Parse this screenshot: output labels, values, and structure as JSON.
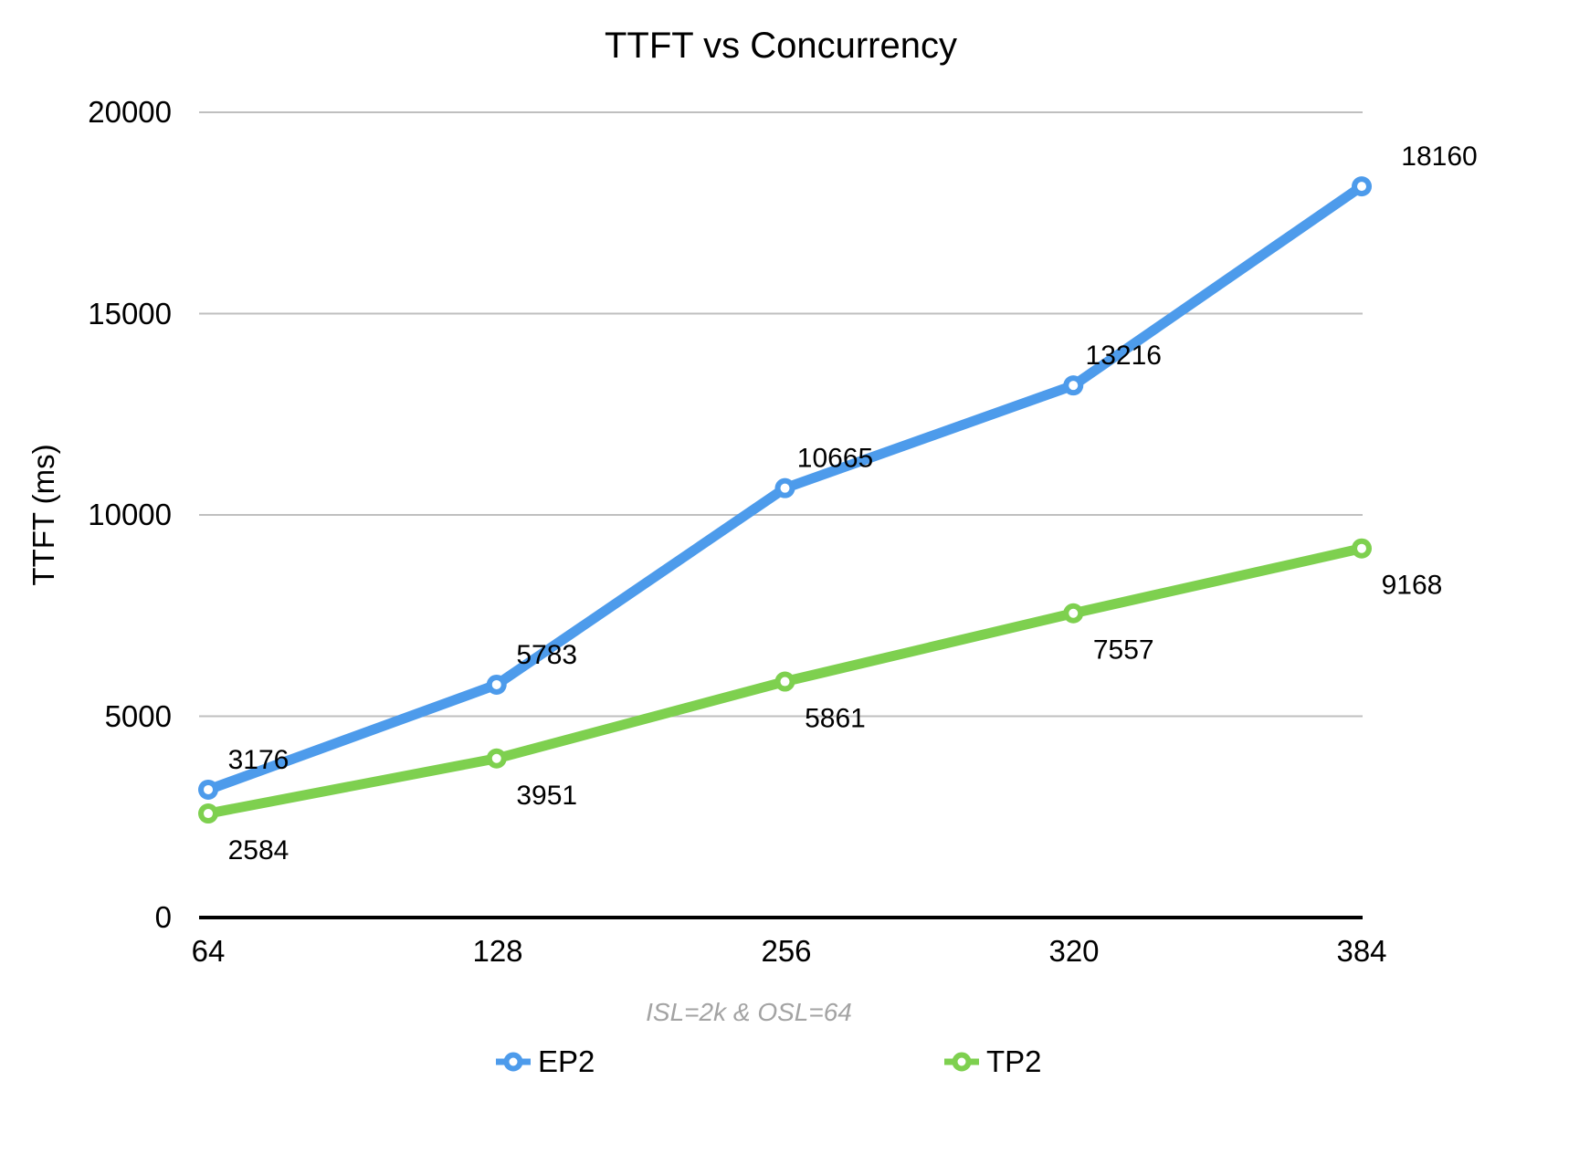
{
  "chart_data": {
    "type": "line",
    "title": "TTFT vs Concurrency",
    "ylabel": "TTFT (ms)",
    "xlabel": "ISL=2k & OSL=64",
    "categories": [
      "64",
      "128",
      "256",
      "320",
      "384"
    ],
    "series": [
      {
        "name": "EP2",
        "color": "#4D9BEB",
        "values": [
          3176,
          5783,
          10665,
          13216,
          18160
        ]
      },
      {
        "name": "TP2",
        "color": "#7ED04F",
        "values": [
          2584,
          3951,
          5861,
          7557,
          9168
        ]
      }
    ],
    "ylim": [
      0,
      20000
    ],
    "y_ticks": [
      0,
      5000,
      10000,
      15000,
      20000
    ],
    "y_tick_labels": [
      "0",
      "5000",
      "10000",
      "15000",
      "20000"
    ],
    "grid": "on",
    "legend_position": "bottom",
    "data_labels": "on",
    "colors": {
      "background": "#FFFFFF",
      "grid": "#BFBFBF",
      "axis": "#000000",
      "data_label": "#000000",
      "annotation": "#A3A3A3"
    }
  }
}
